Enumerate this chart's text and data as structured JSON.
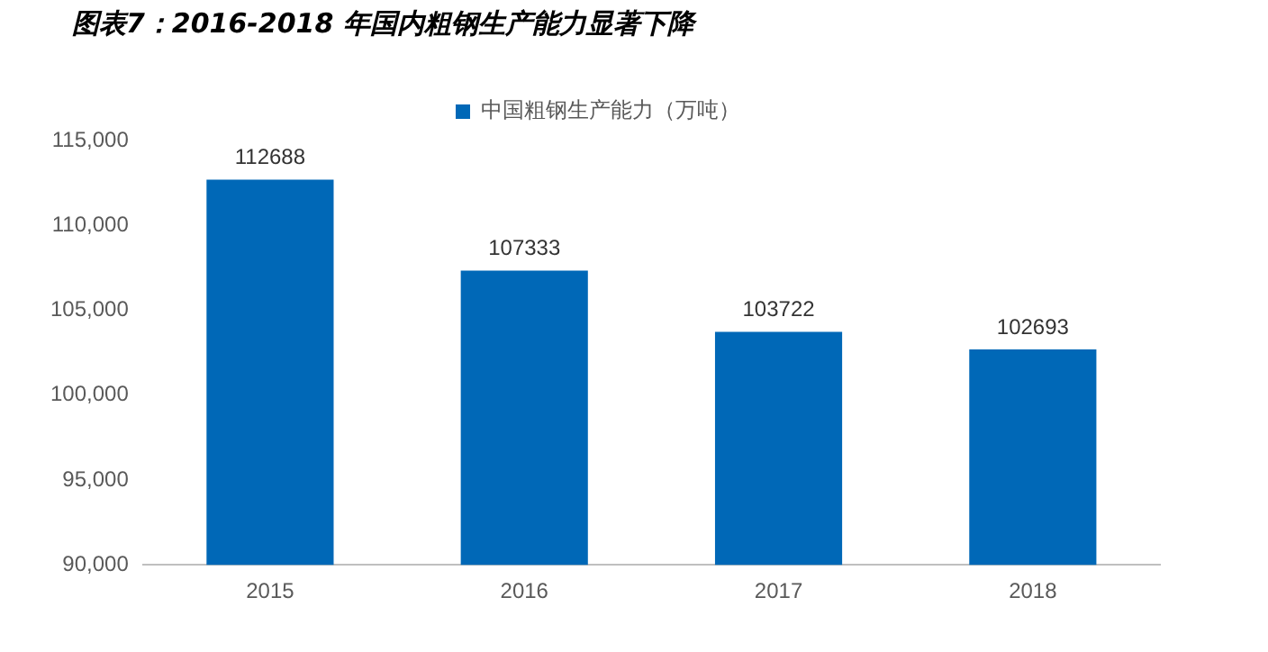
{
  "chart_data": {
    "type": "bar",
    "title": "图表7：2016-2018 年国内粗钢生产能力显著下降",
    "categories": [
      "2015",
      "2016",
      "2017",
      "2018"
    ],
    "series": [
      {
        "name": "中国粗钢生产能力（万吨）",
        "color": "#0068b7",
        "values": [
          112688,
          107333,
          103722,
          102693
        ]
      }
    ],
    "ylim": [
      90000,
      115000
    ],
    "yticks": [
      {
        "value": 90000,
        "label": "90,000"
      },
      {
        "value": 95000,
        "label": "95,000"
      },
      {
        "value": 100000,
        "label": "100,000"
      },
      {
        "value": 105000,
        "label": "105,000"
      },
      {
        "value": 110000,
        "label": "110,000"
      },
      {
        "value": 115000,
        "label": "115,000"
      }
    ],
    "grid": false,
    "legend": "top",
    "data_labels": true
  }
}
